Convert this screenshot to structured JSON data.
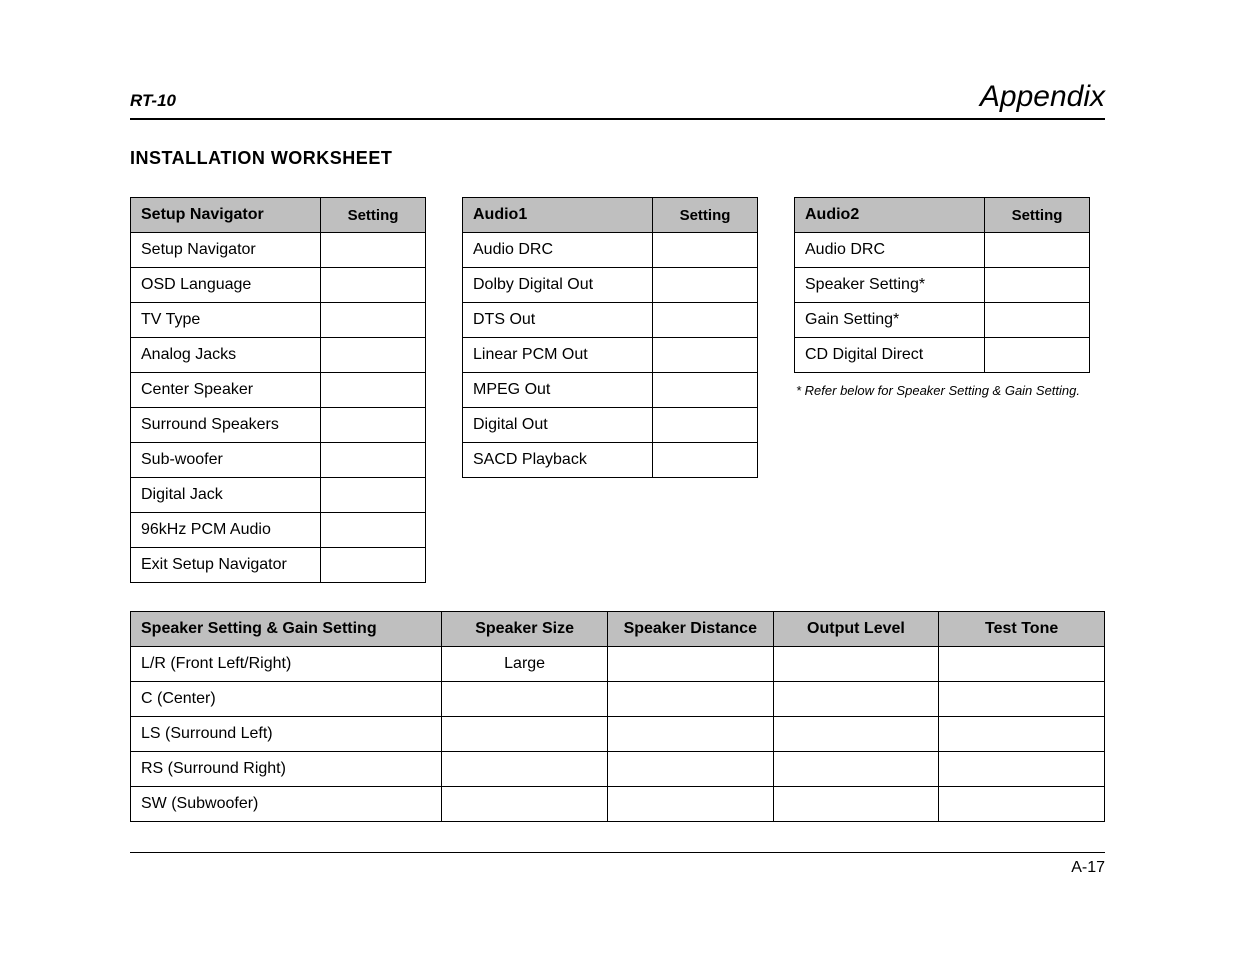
{
  "header": {
    "left": "RT-10",
    "right": "Appendix"
  },
  "section_title": "INSTALLATION WORKSHEET",
  "tables": {
    "setup_navigator": {
      "title": "Setup Navigator",
      "setting_head": "Setting",
      "rows": [
        {
          "label": "Setup Navigator",
          "value": ""
        },
        {
          "label": "OSD Language",
          "value": ""
        },
        {
          "label": "TV Type",
          "value": ""
        },
        {
          "label": "Analog Jacks",
          "value": ""
        },
        {
          "label": "Center Speaker",
          "value": ""
        },
        {
          "label": "Surround Speakers",
          "value": ""
        },
        {
          "label": "Sub-woofer",
          "value": ""
        },
        {
          "label": "Digital Jack",
          "value": ""
        },
        {
          "label": "96kHz PCM Audio",
          "value": ""
        },
        {
          "label": "Exit Setup Navigator",
          "value": ""
        }
      ]
    },
    "audio1": {
      "title": "Audio1",
      "setting_head": "Setting",
      "rows": [
        {
          "label": "Audio DRC",
          "value": ""
        },
        {
          "label": "Dolby Digital Out",
          "value": ""
        },
        {
          "label": "DTS Out",
          "value": ""
        },
        {
          "label": "Linear PCM Out",
          "value": ""
        },
        {
          "label": "MPEG Out",
          "value": ""
        },
        {
          "label": "Digital Out",
          "value": ""
        },
        {
          "label": "SACD Playback",
          "value": ""
        }
      ]
    },
    "audio2": {
      "title": "Audio2",
      "setting_head": "Setting",
      "rows": [
        {
          "label": "Audio DRC",
          "value": ""
        },
        {
          "label": "Speaker Setting*",
          "value": ""
        },
        {
          "label": "Gain Setting*",
          "value": ""
        },
        {
          "label": "CD Digital Direct",
          "value": ""
        }
      ],
      "footnote": "*   Refer below for Speaker Setting & Gain Setting."
    },
    "speaker_gain": {
      "headers": [
        "Speaker Setting & Gain Setting",
        "Speaker Size",
        "Speaker Distance",
        "Output Level",
        "Test Tone"
      ],
      "rows": [
        {
          "label": "L/R (Front Left/Right)",
          "size": "Large",
          "distance": "",
          "level": "",
          "tone": ""
        },
        {
          "label": "C (Center)",
          "size": "",
          "distance": "",
          "level": "",
          "tone": ""
        },
        {
          "label": "LS (Surround Left)",
          "size": "",
          "distance": "",
          "level": "",
          "tone": ""
        },
        {
          "label": "RS (Surround Right)",
          "size": "",
          "distance": "",
          "level": "",
          "tone": ""
        },
        {
          "label": "SW (Subwoofer)",
          "size": "",
          "distance": "",
          "level": "",
          "tone": ""
        }
      ]
    }
  },
  "page_number": "A-17",
  "colors": {
    "header_bg": "#bfbfbf",
    "border": "#000000",
    "text": "#000000",
    "background": "#ffffff"
  },
  "typography": {
    "body_font": "Optima / sans-serif",
    "title_size_pt": 14,
    "cell_size_pt": 12,
    "appendix_size_pt": 22
  }
}
